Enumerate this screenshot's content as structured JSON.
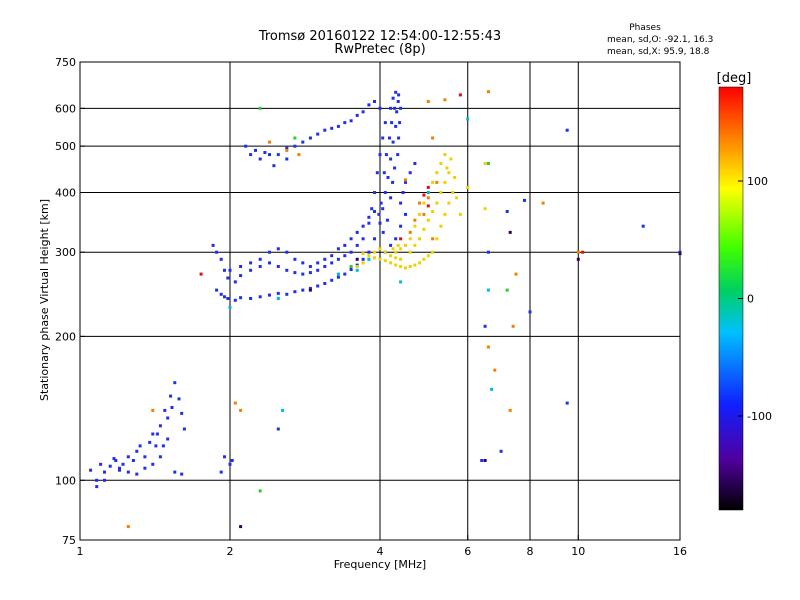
{
  "chart_data": {
    "type": "scatter",
    "title": "Tromsø 20160122 12:54:00-12:55:43",
    "subtitle": "RwPretec (8p)",
    "xlabel": "Frequency [MHz]",
    "ylabel": "Stationary phase Virtual Height [km]",
    "x_scale": "log",
    "y_scale": "log",
    "xlim": [
      1,
      16
    ],
    "ylim": [
      75,
      750
    ],
    "x_ticks": [
      1,
      2,
      4,
      6,
      8,
      10,
      16
    ],
    "y_ticks": [
      75,
      100,
      200,
      300,
      400,
      500,
      600,
      750
    ],
    "x_grid": [
      2,
      4,
      6,
      8,
      10
    ],
    "y_grid": [
      100,
      200,
      300,
      400,
      500,
      600
    ],
    "stats_title": "Phases",
    "stats_o": "mean, sd,O: -92.1, 16.3",
    "stats_x": "mean, sd,X: 95.9, 18.8",
    "colorbar": {
      "label": "[deg]",
      "range": [
        -180,
        180
      ],
      "ticks": [
        -100,
        0,
        100
      ]
    },
    "series": [
      {
        "mode": "O",
        "phase_deg": -92,
        "color": "#2030e8",
        "points": [
          [
            1.05,
            105
          ],
          [
            1.08,
            100
          ],
          [
            1.1,
            108
          ],
          [
            1.12,
            104
          ],
          [
            1.15,
            107
          ],
          [
            1.18,
            110
          ],
          [
            1.2,
            106
          ],
          [
            1.22,
            108
          ],
          [
            1.25,
            112
          ],
          [
            1.28,
            110
          ],
          [
            1.3,
            115
          ],
          [
            1.32,
            118
          ],
          [
            1.35,
            112
          ],
          [
            1.38,
            120
          ],
          [
            1.4,
            125
          ],
          [
            1.42,
            118
          ],
          [
            1.45,
            130
          ],
          [
            1.48,
            140
          ],
          [
            1.5,
            135
          ],
          [
            1.52,
            150
          ],
          [
            1.55,
            160
          ],
          [
            1.58,
            148
          ],
          [
            1.6,
            138
          ],
          [
            1.62,
            128
          ],
          [
            1.5,
            122
          ],
          [
            1.45,
            112
          ],
          [
            1.4,
            108
          ],
          [
            1.35,
            106
          ],
          [
            1.55,
            104
          ],
          [
            1.6,
            103
          ],
          [
            1.3,
            103
          ],
          [
            1.25,
            104
          ],
          [
            1.2,
            105
          ],
          [
            1.08,
            97
          ],
          [
            1.12,
            100
          ],
          [
            1.17,
            111
          ],
          [
            1.43,
            125
          ],
          [
            1.47,
            118
          ],
          [
            1.53,
            142
          ],
          [
            1.95,
            112
          ],
          [
            2.0,
            108
          ],
          [
            2.02,
            110
          ],
          [
            1.92,
            104
          ],
          [
            1.85,
            310
          ],
          [
            1.88,
            300
          ],
          [
            1.92,
            290
          ],
          [
            1.95,
            275
          ],
          [
            1.98,
            265
          ],
          [
            1.88,
            250
          ],
          [
            1.92,
            245
          ],
          [
            1.95,
            242
          ],
          [
            1.98,
            240
          ],
          [
            2.05,
            238
          ],
          [
            2.1,
            241
          ],
          [
            2.2,
            240
          ],
          [
            2.3,
            242
          ],
          [
            2.4,
            244
          ],
          [
            2.5,
            246
          ],
          [
            2.6,
            245
          ],
          [
            2.7,
            248
          ],
          [
            2.8,
            250
          ],
          [
            2.9,
            252
          ],
          [
            3.0,
            255
          ],
          [
            3.1,
            258
          ],
          [
            3.2,
            262
          ],
          [
            3.3,
            266
          ],
          [
            3.4,
            270
          ],
          [
            3.5,
            276
          ],
          [
            3.6,
            282
          ],
          [
            3.7,
            290
          ],
          [
            3.8,
            300
          ],
          [
            3.9,
            320
          ],
          [
            4.0,
            345
          ],
          [
            4.05,
            370
          ],
          [
            4.1,
            400
          ],
          [
            4.15,
            430
          ],
          [
            4.2,
            470
          ],
          [
            4.25,
            510
          ],
          [
            4.3,
            550
          ],
          [
            4.32,
            590
          ],
          [
            4.35,
            620
          ],
          [
            4.28,
            600
          ],
          [
            4.22,
            560
          ],
          [
            4.18,
            520
          ],
          [
            4.12,
            480
          ],
          [
            4.08,
            440
          ],
          [
            4.02,
            380
          ],
          [
            3.98,
            360
          ],
          [
            4.06,
            330
          ],
          [
            4.14,
            350
          ],
          [
            4.2,
            390
          ],
          [
            4.24,
            420
          ],
          [
            4.28,
            450
          ],
          [
            4.34,
            480
          ],
          [
            4.36,
            520
          ],
          [
            4.38,
            560
          ],
          [
            4.4,
            600
          ],
          [
            4.36,
            640
          ],
          [
            4.3,
            648
          ],
          [
            4.25,
            630
          ],
          [
            4.2,
            600
          ],
          [
            4.1,
            560
          ],
          [
            4.05,
            520
          ],
          [
            4.0,
            480
          ],
          [
            3.95,
            440
          ],
          [
            3.9,
            400
          ],
          [
            3.85,
            370
          ],
          [
            3.8,
            345
          ],
          [
            3.7,
            320
          ],
          [
            3.6,
            310
          ],
          [
            3.5,
            300
          ],
          [
            3.4,
            295
          ],
          [
            3.3,
            290
          ],
          [
            3.2,
            285
          ],
          [
            3.1,
            280
          ],
          [
            3.0,
            275
          ],
          [
            2.9,
            272
          ],
          [
            2.8,
            270
          ],
          [
            2.7,
            272
          ],
          [
            2.6,
            275
          ],
          [
            2.5,
            280
          ],
          [
            2.4,
            285
          ],
          [
            2.3,
            280
          ],
          [
            2.2,
            275
          ],
          [
            2.1,
            268
          ],
          [
            2.05,
            260
          ],
          [
            2.15,
            500
          ],
          [
            2.25,
            490
          ],
          [
            2.35,
            485
          ],
          [
            2.5,
            480
          ],
          [
            2.7,
            500
          ],
          [
            2.9,
            520
          ],
          [
            3.0,
            530
          ],
          [
            3.2,
            545
          ],
          [
            3.4,
            560
          ],
          [
            3.6,
            580
          ],
          [
            3.8,
            610
          ],
          [
            3.9,
            620
          ],
          [
            4.0,
            600
          ],
          [
            3.7,
            590
          ],
          [
            3.5,
            565
          ],
          [
            3.3,
            550
          ],
          [
            3.1,
            540
          ],
          [
            2.8,
            510
          ],
          [
            2.6,
            495
          ],
          [
            2.4,
            480
          ],
          [
            2.3,
            470
          ],
          [
            2.2,
            480
          ],
          [
            2.45,
            455
          ],
          [
            2.6,
            470
          ],
          [
            2.7,
            290
          ],
          [
            2.8,
            285
          ],
          [
            2.9,
            280
          ],
          [
            3.0,
            285
          ],
          [
            3.1,
            290
          ],
          [
            2.6,
            300
          ],
          [
            2.5,
            305
          ],
          [
            2.4,
            300
          ],
          [
            2.3,
            290
          ],
          [
            2.2,
            285
          ],
          [
            2.1,
            280
          ],
          [
            2.0,
            275
          ],
          [
            3.2,
            295
          ],
          [
            3.3,
            305
          ],
          [
            3.4,
            310
          ],
          [
            3.5,
            320
          ],
          [
            3.6,
            330
          ],
          [
            3.7,
            340
          ],
          [
            3.8,
            355
          ],
          [
            3.9,
            365
          ],
          [
            4.4,
            380
          ],
          [
            4.45,
            400
          ],
          [
            4.5,
            420
          ],
          [
            4.6,
            440
          ],
          [
            4.7,
            460
          ],
          [
            4.5,
            360
          ],
          [
            4.4,
            340
          ],
          [
            4.3,
            320
          ],
          [
            4.2,
            310
          ],
          [
            4.1,
            300
          ],
          [
            2.5,
            128
          ],
          [
            6.6,
            300
          ],
          [
            7.2,
            365
          ],
          [
            7.8,
            385
          ],
          [
            9.5,
            540
          ],
          [
            8.0,
            225
          ],
          [
            7.0,
            115
          ],
          [
            6.5,
            210
          ],
          [
            13.5,
            340
          ],
          [
            16.0,
            300
          ],
          [
            9.5,
            145
          ],
          [
            6.4,
            110
          ]
        ]
      },
      {
        "mode": "X",
        "phase_deg": 96,
        "color": "#f0d000",
        "points": [
          [
            3.6,
            280
          ],
          [
            3.7,
            285
          ],
          [
            3.8,
            290
          ],
          [
            3.9,
            300
          ],
          [
            4.0,
            305
          ],
          [
            4.1,
            300
          ],
          [
            4.2,
            295
          ],
          [
            4.3,
            300
          ],
          [
            4.4,
            305
          ],
          [
            4.5,
            310
          ],
          [
            4.6,
            320
          ],
          [
            4.7,
            340
          ],
          [
            4.8,
            360
          ],
          [
            4.9,
            380
          ],
          [
            5.0,
            400
          ],
          [
            5.1,
            420
          ],
          [
            5.2,
            440
          ],
          [
            5.3,
            460
          ],
          [
            5.4,
            480
          ],
          [
            5.5,
            440
          ],
          [
            5.6,
            400
          ],
          [
            5.5,
            380
          ],
          [
            5.4,
            360
          ],
          [
            5.3,
            340
          ],
          [
            5.2,
            320
          ],
          [
            5.1,
            300
          ],
          [
            5.0,
            295
          ],
          [
            4.9,
            290
          ],
          [
            4.8,
            285
          ],
          [
            4.7,
            282
          ],
          [
            4.6,
            280
          ],
          [
            4.5,
            278
          ],
          [
            4.4,
            280
          ],
          [
            4.3,
            282
          ],
          [
            4.2,
            285
          ],
          [
            4.1,
            288
          ],
          [
            4.0,
            290
          ],
          [
            3.9,
            292
          ],
          [
            3.8,
            295
          ],
          [
            3.7,
            298
          ],
          [
            4.6,
            300
          ],
          [
            4.7,
            310
          ],
          [
            4.8,
            320
          ],
          [
            4.9,
            335
          ],
          [
            5.0,
            350
          ],
          [
            5.1,
            365
          ],
          [
            5.2,
            380
          ],
          [
            5.3,
            400
          ],
          [
            5.4,
            420
          ],
          [
            5.45,
            450
          ],
          [
            5.55,
            470
          ],
          [
            5.65,
            430
          ],
          [
            4.4,
            290
          ],
          [
            4.3,
            292
          ],
          [
            4.25,
            305
          ],
          [
            4.35,
            310
          ],
          [
            6.5,
            370
          ],
          [
            6.5,
            460
          ],
          [
            5.7,
            390
          ],
          [
            5.8,
            360
          ],
          [
            6.0,
            410
          ]
        ]
      },
      {
        "mode": "X-orange",
        "phase_deg": 140,
        "color": "#f08000",
        "points": [
          [
            4.8,
            380
          ],
          [
            4.9,
            360
          ],
          [
            5.0,
            390
          ],
          [
            5.2,
            420
          ],
          [
            5.1,
            320
          ],
          [
            4.6,
            330
          ],
          [
            4.7,
            350
          ],
          [
            5.0,
            620
          ],
          [
            5.4,
            625
          ],
          [
            6.6,
            650
          ],
          [
            2.4,
            510
          ],
          [
            2.6,
            490
          ],
          [
            2.75,
            480
          ],
          [
            1.4,
            140
          ],
          [
            1.25,
            80
          ],
          [
            2.05,
            145
          ],
          [
            2.1,
            140
          ],
          [
            5.1,
            520
          ],
          [
            4.5,
            425
          ],
          [
            6.6,
            190
          ],
          [
            7.3,
            140
          ],
          [
            7.4,
            210
          ],
          [
            6.8,
            170
          ],
          [
            7.5,
            270
          ],
          [
            10.0,
            300
          ],
          [
            8.5,
            380
          ]
        ]
      },
      {
        "mode": "X-red",
        "phase_deg": 175,
        "color": "#e01010",
        "points": [
          [
            1.75,
            270
          ],
          [
            5.0,
            375
          ],
          [
            4.9,
            395
          ],
          [
            4.4,
            320
          ],
          [
            5.0,
            410
          ],
          [
            5.8,
            640
          ],
          [
            10.2,
            300
          ]
        ]
      },
      {
        "mode": "O-cyan",
        "phase_deg": -20,
        "color": "#00b8e0",
        "points": [
          [
            2.0,
            230
          ],
          [
            2.5,
            240
          ],
          [
            3.3,
            270
          ],
          [
            3.6,
            275
          ],
          [
            4.4,
            260
          ],
          [
            5.0,
            400
          ],
          [
            6.0,
            570
          ],
          [
            6.6,
            250
          ],
          [
            6.7,
            155
          ],
          [
            2.55,
            140
          ],
          [
            3.8,
            290
          ]
        ]
      },
      {
        "mode": "O-green",
        "phase_deg": 20,
        "color": "#30c830",
        "points": [
          [
            2.3,
            600
          ],
          [
            2.7,
            520
          ],
          [
            3.5,
            280
          ],
          [
            6.6,
            460
          ],
          [
            7.2,
            250
          ],
          [
            2.3,
            95
          ]
        ]
      },
      {
        "mode": "O-dark",
        "phase_deg": -150,
        "color": "#300060",
        "points": [
          [
            2.1,
            80
          ],
          [
            2.9,
            250
          ],
          [
            6.5,
            110
          ],
          [
            7.3,
            330
          ],
          [
            10.0,
            290
          ],
          [
            16.0,
            298
          ],
          [
            3.6,
            290
          ]
        ]
      }
    ]
  }
}
